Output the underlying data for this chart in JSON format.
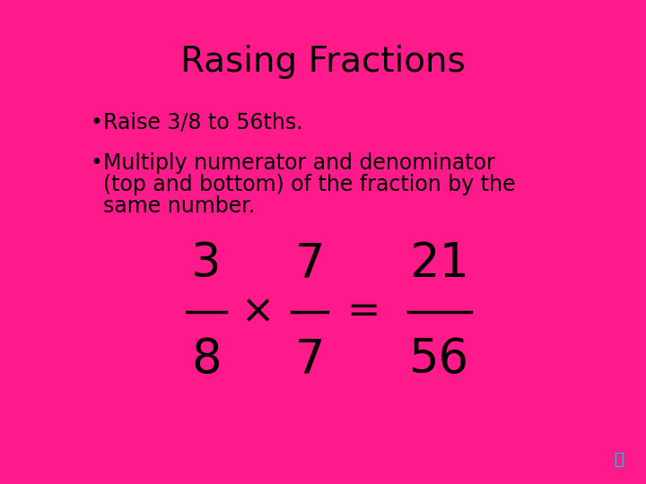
{
  "title": "Rasing Fractions",
  "bg_color": "#FF1A8C",
  "text_color": "#000000",
  "title_fontsize": 28,
  "bullet_fontsize": 17,
  "math_fontsize": 38,
  "bullet1": "Raise 3/8 to 56ths.",
  "bullet2_line1": "Multiply numerator and denominator",
  "bullet2_line2": "(top and bottom) of the fraction by the",
  "bullet2_line3": "same number.",
  "fraction_color": "#000000",
  "speaker_color": "#1ECBE1"
}
